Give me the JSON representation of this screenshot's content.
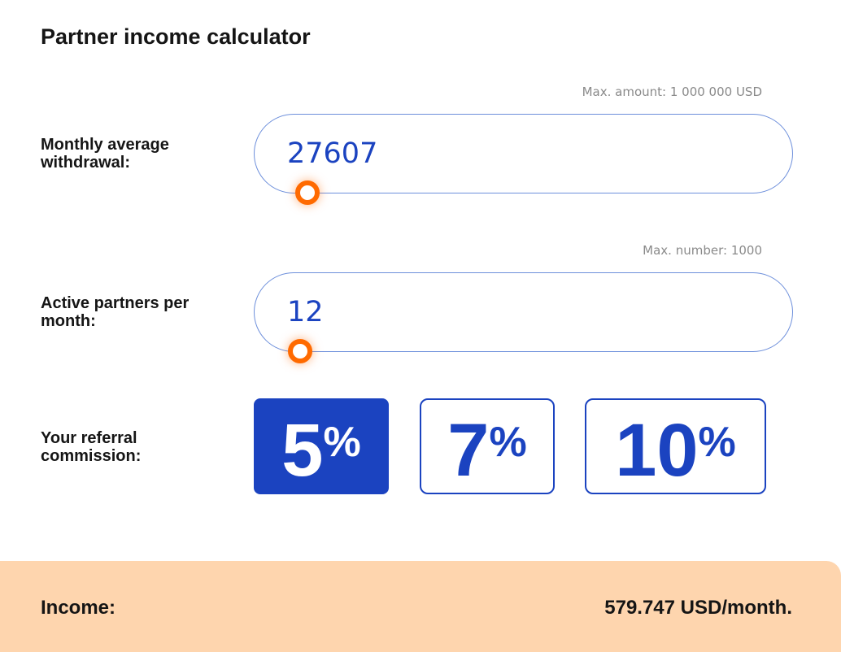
{
  "title": "Partner income calculator",
  "withdrawal": {
    "label": "Monthly average withdrawal:",
    "max_label": "Max. amount: 1 000 000 USD",
    "value": "27607",
    "max": 1000000,
    "slider_fraction": 0.0276
  },
  "partners": {
    "label": "Active partners per month:",
    "max_label": "Max. number: 1000",
    "value": "12",
    "max": 1000,
    "slider_fraction": 0.012
  },
  "commission": {
    "label": "Your referral commission:",
    "options": [
      {
        "num": "5",
        "pct": "%",
        "selected": true
      },
      {
        "num": "7",
        "pct": "%",
        "selected": false
      },
      {
        "num": "10",
        "pct": "%",
        "selected": false
      }
    ]
  },
  "income": {
    "label": "Income:",
    "value": "579.747 USD/month."
  },
  "colors": {
    "accent": "#1b43c0",
    "thumb": "#ff6a00",
    "income_bg": "#fed5ae"
  }
}
